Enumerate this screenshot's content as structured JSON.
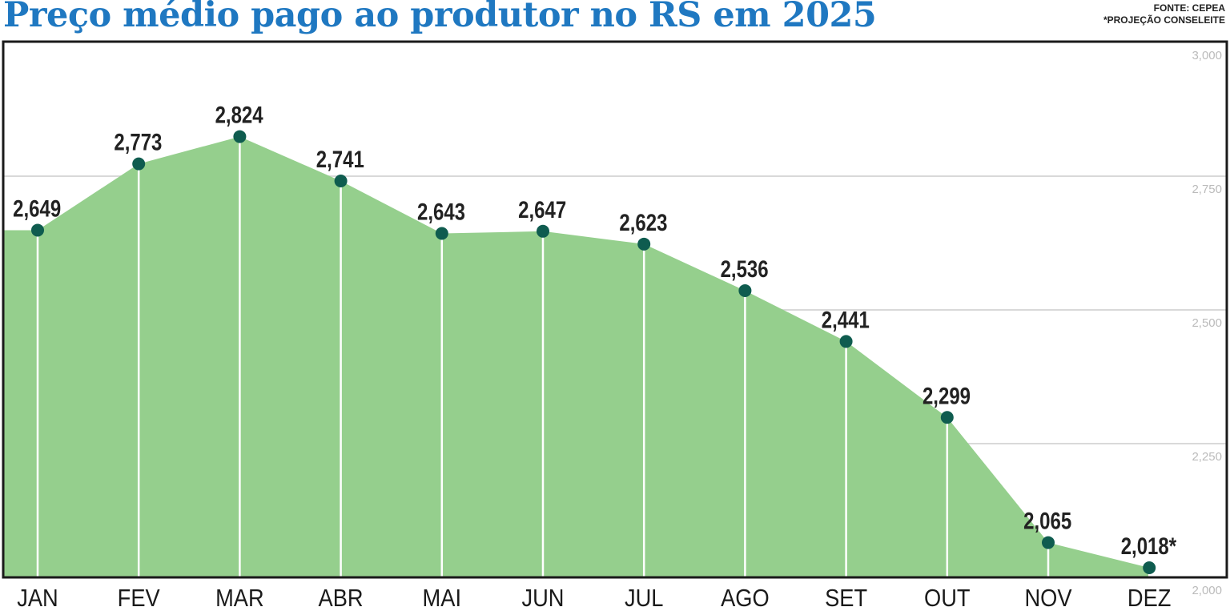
{
  "header": {
    "title": "Preço médio pago ao produtor no RS em 2025",
    "source_line1": "FONTE: CEPEA",
    "source_line2": "*PROJEÇÃO CONSELEITE"
  },
  "colors": {
    "area": "#95cf8d",
    "marker": "#0f5c4f",
    "title": "#1f78c1",
    "grid": "#d9d9d9"
  },
  "chart_data": {
    "type": "area",
    "title": "Preço médio pago ao produtor no RS em 2025",
    "categories": [
      "JAN",
      "FEV",
      "MAR",
      "ABR",
      "MAI",
      "JUN",
      "JUL",
      "AGO",
      "SET",
      "OUT",
      "NOV",
      "DEZ"
    ],
    "values": [
      2.649,
      2.773,
      2.824,
      2.741,
      2.643,
      2.647,
      2.623,
      2.536,
      2.441,
      2.299,
      2.065,
      2.018
    ],
    "value_labels": [
      "2,649",
      "2,773",
      "2,824",
      "2,741",
      "2,643",
      "2,647",
      "2,623",
      "2,536",
      "2,441",
      "2,299",
      "2,065",
      "2,018*"
    ],
    "ylim": [
      2.0,
      3.0
    ],
    "yticks": [
      2.0,
      2.25,
      2.5,
      2.75,
      3.0
    ],
    "ytick_labels": [
      "2,000",
      "2,250",
      "2,500",
      "2,750",
      "3,000"
    ],
    "xlabel": "",
    "ylabel": "",
    "grid": true,
    "y_axis_position": "right"
  }
}
